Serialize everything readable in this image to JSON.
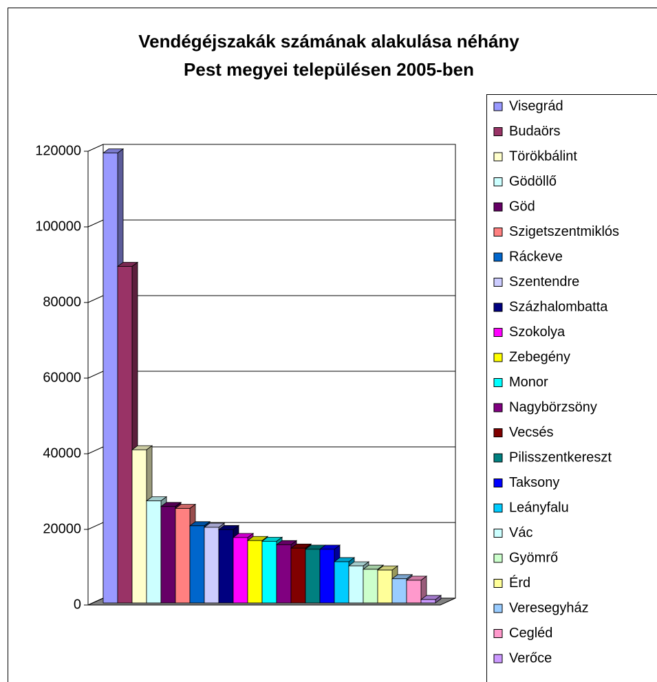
{
  "chart_data": {
    "type": "bar3d",
    "title": [
      "Vendégéjszakák számának alakulása néhány",
      "Pest megyei településen 2005-ben"
    ],
    "categories": [
      null
    ],
    "ylim": [
      0,
      120000
    ],
    "yticks": [
      0,
      20000,
      40000,
      60000,
      80000,
      100000,
      120000
    ],
    "grid": true,
    "legend": "right",
    "series": [
      {
        "name": "Visegrád",
        "color": "#9999ff",
        "values": [
          119000
        ]
      },
      {
        "name": "Budaörs",
        "color": "#993366",
        "values": [
          89000
        ]
      },
      {
        "name": "Törökbálint",
        "color": "#ffffcc",
        "values": [
          40500
        ]
      },
      {
        "name": "Gödöllő",
        "color": "#ccffff",
        "values": [
          27000
        ]
      },
      {
        "name": "Göd",
        "color": "#660066",
        "values": [
          25500
        ]
      },
      {
        "name": "Szigetszentmiklós",
        "color": "#ff8080",
        "values": [
          25000
        ]
      },
      {
        "name": "Ráckeve",
        "color": "#0066cc",
        "values": [
          20400
        ]
      },
      {
        "name": "Szentendre",
        "color": "#ccccff",
        "values": [
          20000
        ]
      },
      {
        "name": "Százhalombatta",
        "color": "#000080",
        "values": [
          19400
        ]
      },
      {
        "name": "Szokolya",
        "color": "#ff00ff",
        "values": [
          17300
        ]
      },
      {
        "name": "Zebegény",
        "color": "#ffff00",
        "values": [
          16500
        ]
      },
      {
        "name": "Monor",
        "color": "#00ffff",
        "values": [
          16300
        ]
      },
      {
        "name": "Nagybörzsöny",
        "color": "#800080",
        "values": [
          15400
        ]
      },
      {
        "name": "Vecsés",
        "color": "#800000",
        "values": [
          14500
        ]
      },
      {
        "name": "Pilisszentkereszt",
        "color": "#008080",
        "values": [
          14200
        ]
      },
      {
        "name": "Taksony",
        "color": "#0000ff",
        "values": [
          14200
        ]
      },
      {
        "name": "Leányfalu",
        "color": "#00ccff",
        "values": [
          10900
        ]
      },
      {
        "name": "Vác",
        "color": "#ccffff",
        "values": [
          9800
        ]
      },
      {
        "name": "Gyömrő",
        "color": "#ccffcc",
        "values": [
          8900
        ]
      },
      {
        "name": "Érd",
        "color": "#ffff99",
        "values": [
          8700
        ]
      },
      {
        "name": "Veresegyház",
        "color": "#99ccff",
        "values": [
          6400
        ]
      },
      {
        "name": "Cegléd",
        "color": "#ff99cc",
        "values": [
          6000
        ]
      },
      {
        "name": "Verőce",
        "color": "#cc99ff",
        "values": [
          900
        ]
      }
    ]
  }
}
